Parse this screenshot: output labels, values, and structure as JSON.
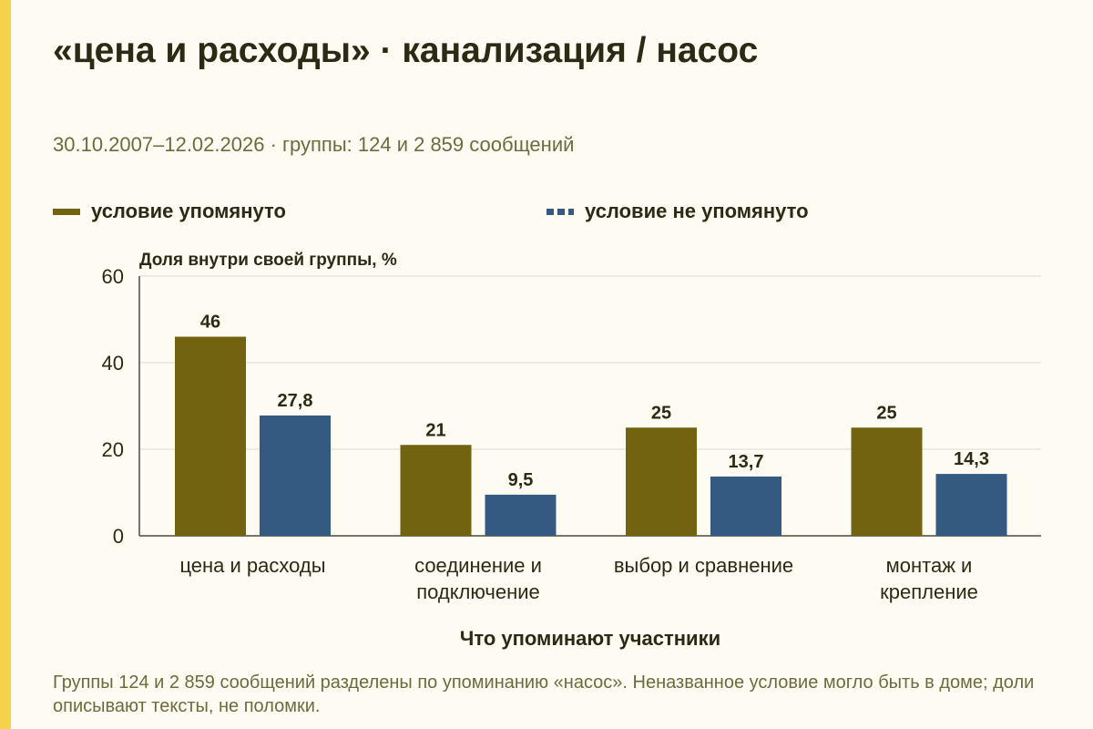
{
  "title": "«цена и расходы» · канализация / насос",
  "subtitle": "30.10.2007–12.02.2026 · группы: 124 и 2 859 сообщений",
  "footnote": "Группы 124 и 2 859 сообщений разделены по упоминанию «насос». Неназванное условие могло быть в доме; доли описывают тексты, не поломки.",
  "colors": {
    "background": "#fefcf2",
    "accent_strip": "#f6d24a",
    "series_mentioned": "#726311",
    "series_not_mentioned": "#355a82",
    "gridline": "#d9d8d0",
    "axis": "#4a4a3a"
  },
  "chart_data": {
    "type": "bar",
    "ylabel": "Доля внутри своей группы, %",
    "xlabel": "Что упоминают участники",
    "ylim": [
      0,
      60
    ],
    "yticks": [
      0,
      20,
      40,
      60
    ],
    "grid": true,
    "legend_position": "top",
    "categories": [
      [
        "цена и расходы"
      ],
      [
        "соединение и",
        "подключение"
      ],
      [
        "выбор и сравнение"
      ],
      [
        "монтаж и",
        "крепление"
      ]
    ],
    "series": [
      {
        "name": "условие упомянуто",
        "values": [
          46,
          21,
          25,
          25
        ],
        "labels": [
          "46",
          "21",
          "25",
          "25"
        ],
        "color": "#726311",
        "legend_style": "solid"
      },
      {
        "name": "условие не упомянуто",
        "values": [
          27.8,
          9.5,
          13.7,
          14.3
        ],
        "labels": [
          "27,8",
          "9,5",
          "13,7",
          "14,3"
        ],
        "color": "#355a82",
        "legend_style": "dashed"
      }
    ]
  }
}
